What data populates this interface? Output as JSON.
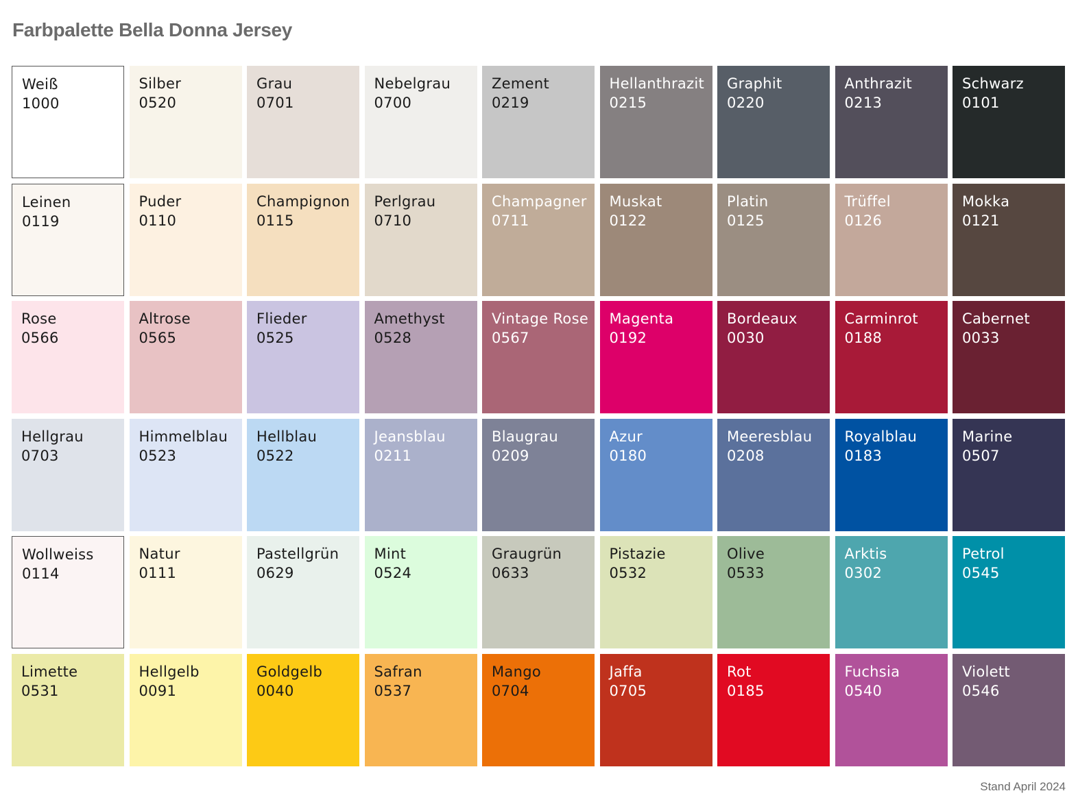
{
  "title": "Farbpalette Bella Donna Jersey",
  "footer": "Stand April 2024",
  "swatches": [
    {
      "name": "Weiß",
      "code": "1000",
      "color": "#ffffff",
      "text": "#1a1a1a",
      "border": true
    },
    {
      "name": "Silber",
      "code": "0520",
      "color": "#f8f4ea",
      "text": "#1a1a1a"
    },
    {
      "name": "Grau",
      "code": "0701",
      "color": "#e6ded8",
      "text": "#1a1a1a"
    },
    {
      "name": "Nebelgrau",
      "code": "0700",
      "color": "#f0efec",
      "text": "#1a1a1a"
    },
    {
      "name": "Zement",
      "code": "0219",
      "color": "#c6c6c6",
      "text": "#1a1a1a"
    },
    {
      "name": "Hellanthrazit",
      "code": "0215",
      "color": "#858081",
      "text": "#ffffff"
    },
    {
      "name": "Graphit",
      "code": "0220",
      "color": "#575e67",
      "text": "#ffffff"
    },
    {
      "name": "Anthrazit",
      "code": "0213",
      "color": "#534f5b",
      "text": "#ffffff"
    },
    {
      "name": "Schwarz",
      "code": "0101",
      "color": "#252a2a",
      "text": "#ffffff"
    },
    {
      "name": "Leinen",
      "code": "0119",
      "color": "#faf6f1",
      "text": "#1a1a1a",
      "border": true
    },
    {
      "name": "Puder",
      "code": "0110",
      "color": "#fdf1e1",
      "text": "#1a1a1a"
    },
    {
      "name": "Champignon",
      "code": "0115",
      "color": "#f5dfbf",
      "text": "#1a1a1a"
    },
    {
      "name": "Perlgrau",
      "code": "0710",
      "color": "#e2d9cb",
      "text": "#1a1a1a"
    },
    {
      "name": "Champagner",
      "code": "0711",
      "color": "#c0ac99",
      "text": "#ffffff"
    },
    {
      "name": "Muskat",
      "code": "0122",
      "color": "#9d8979",
      "text": "#ffffff"
    },
    {
      "name": "Platin",
      "code": "0125",
      "color": "#9b8e82",
      "text": "#ffffff"
    },
    {
      "name": "Trüffel",
      "code": "0126",
      "color": "#c3a89b",
      "text": "#ffffff"
    },
    {
      "name": "Mokka",
      "code": "0121",
      "color": "#564740",
      "text": "#ffffff"
    },
    {
      "name": "Rose",
      "code": "0566",
      "color": "#fde4ea",
      "text": "#1a1a1a"
    },
    {
      "name": "Altrose",
      "code": "0565",
      "color": "#e8c2c4",
      "text": "#1a1a1a"
    },
    {
      "name": "Flieder",
      "code": "0525",
      "color": "#cac4e1",
      "text": "#1a1a1a"
    },
    {
      "name": "Amethyst",
      "code": "0528",
      "color": "#b5a0b4",
      "text": "#1a1a1a"
    },
    {
      "name": "Vintage Rose",
      "code": "0567",
      "color": "#aa6676",
      "text": "#ffffff"
    },
    {
      "name": "Magenta",
      "code": "0192",
      "color": "#dd0069",
      "text": "#ffffff"
    },
    {
      "name": "Bordeaux",
      "code": "0030",
      "color": "#911d42",
      "text": "#ffffff"
    },
    {
      "name": "Carminrot",
      "code": "0188",
      "color": "#a81a38",
      "text": "#ffffff"
    },
    {
      "name": "Cabernet",
      "code": "0033",
      "color": "#6a2132",
      "text": "#ffffff"
    },
    {
      "name": "Hellgrau",
      "code": "0703",
      "color": "#dfe3ea",
      "text": "#1a1a1a"
    },
    {
      "name": "Himmelblau",
      "code": "0523",
      "color": "#dde5f5",
      "text": "#1a1a1a"
    },
    {
      "name": "Hellblau",
      "code": "0522",
      "color": "#bcd9f3",
      "text": "#1a1a1a"
    },
    {
      "name": "Jeansblau",
      "code": "0211",
      "color": "#abb1cb",
      "text": "#ffffff"
    },
    {
      "name": "Blaugrau",
      "code": "0209",
      "color": "#7e8297",
      "text": "#ffffff"
    },
    {
      "name": "Azur",
      "code": "0180",
      "color": "#638dc9",
      "text": "#ffffff"
    },
    {
      "name": "Meeresblau",
      "code": "0208",
      "color": "#5b719c",
      "text": "#ffffff"
    },
    {
      "name": "Royalblau",
      "code": "0183",
      "color": "#0052a2",
      "text": "#ffffff"
    },
    {
      "name": "Marine",
      "code": "0507",
      "color": "#353554",
      "text": "#ffffff"
    },
    {
      "name": "Wollweiss",
      "code": "0114",
      "color": "#fbf4f4",
      "text": "#1a1a1a",
      "border": true
    },
    {
      "name": "Natur",
      "code": "0111",
      "color": "#fdf6df",
      "text": "#1a1a1a"
    },
    {
      "name": "Pastellgrün",
      "code": "0629",
      "color": "#e9f1ec",
      "text": "#1a1a1a"
    },
    {
      "name": "Mint",
      "code": "0524",
      "color": "#dcfcdd",
      "text": "#1a1a1a"
    },
    {
      "name": "Graugrün",
      "code": "0633",
      "color": "#c7c9bc",
      "text": "#1a1a1a"
    },
    {
      "name": "Pistazie",
      "code": "0532",
      "color": "#dce3b8",
      "text": "#1a1a1a"
    },
    {
      "name": "Olive",
      "code": "0533",
      "color": "#9dbb98",
      "text": "#1a1a1a"
    },
    {
      "name": "Arktis",
      "code": "0302",
      "color": "#4ea6ae",
      "text": "#ffffff"
    },
    {
      "name": "Petrol",
      "code": "0545",
      "color": "#0090a8",
      "text": "#ffffff"
    },
    {
      "name": "Limette",
      "code": "0531",
      "color": "#ebeaa8",
      "text": "#1a1a1a"
    },
    {
      "name": "Hellgelb",
      "code": "0091",
      "color": "#fdf4a9",
      "text": "#1a1a1a"
    },
    {
      "name": "Goldgelb",
      "code": "0040",
      "color": "#fdca15",
      "text": "#1a1a1a"
    },
    {
      "name": "Safran",
      "code": "0537",
      "color": "#f8b552",
      "text": "#1a1a1a"
    },
    {
      "name": "Mango",
      "code": "0704",
      "color": "#ec7007",
      "text": "#1a1a1a"
    },
    {
      "name": "Jaffa",
      "code": "0705",
      "color": "#bf321d",
      "text": "#ffffff"
    },
    {
      "name": "Rot",
      "code": "0185",
      "color": "#e10a22",
      "text": "#ffffff"
    },
    {
      "name": "Fuchsia",
      "code": "0540",
      "color": "#b1529a",
      "text": "#ffffff"
    },
    {
      "name": "Violett",
      "code": "0546",
      "color": "#735b73",
      "text": "#ffffff"
    }
  ]
}
